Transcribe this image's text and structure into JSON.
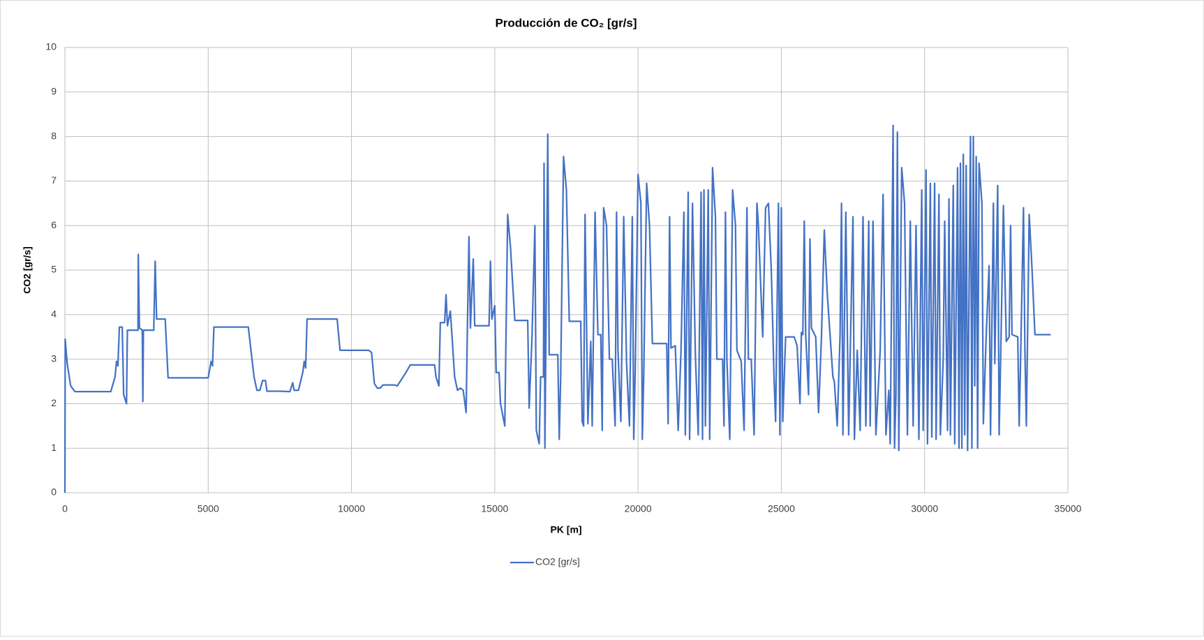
{
  "chart_data": {
    "type": "line",
    "title": "Producción de CO₂ [gr/s]",
    "x_label": "PK [m]",
    "y_label": "CO2  [gr/s]",
    "xlim": [
      0,
      35000
    ],
    "xticks": [
      0,
      5000,
      10000,
      15000,
      20000,
      25000,
      30000,
      35000
    ],
    "ylim": [
      0,
      10
    ],
    "yticks": [
      0,
      1,
      2,
      3,
      4,
      5,
      6,
      7,
      8,
      9,
      10
    ],
    "grid": true,
    "legend": "bottom",
    "x": [
      0,
      10,
      80,
      200,
      350,
      1600,
      1750,
      1800,
      1850,
      1900,
      2000,
      2050,
      2150,
      2180,
      2550,
      2560,
      2600,
      2700,
      2720,
      2740,
      3100,
      3150,
      3200,
      3500,
      3600,
      5000,
      5100,
      5150,
      5200,
      6400,
      6600,
      6700,
      6800,
      6900,
      7000,
      7050,
      7500,
      7850,
      7950,
      8000,
      8150,
      8300,
      8350,
      8400,
      8450,
      9500,
      9600,
      10600,
      10700,
      10800,
      10900,
      11000,
      11100,
      11500,
      11600,
      11900,
      12050,
      12900,
      12950,
      13050,
      13100,
      13250,
      13300,
      13350,
      13450,
      13500,
      13600,
      13700,
      13800,
      13900,
      14000,
      14050,
      14100,
      14150,
      14250,
      14300,
      14800,
      14850,
      14900,
      15000,
      15050,
      15150,
      15200,
      15350,
      15450,
      15550,
      15700,
      16150,
      16200,
      16300,
      16400,
      16450,
      16550,
      16600,
      16700,
      16720,
      16750,
      16850,
      16900,
      17200,
      17250,
      17300,
      17400,
      17500,
      17600,
      18000,
      18050,
      18100,
      18150,
      18250,
      18350,
      18400,
      18500,
      18600,
      18700,
      18750,
      18800,
      18900,
      19000,
      19100,
      19200,
      19250,
      19300,
      19400,
      19500,
      19600,
      19700,
      19800,
      19850,
      19900,
      20000,
      20100,
      20150,
      20200,
      20300,
      20400,
      20500,
      21000,
      21050,
      21100,
      21150,
      21300,
      21400,
      21500,
      21600,
      21650,
      21750,
      21800,
      21900,
      22000,
      22100,
      22200,
      22250,
      22300,
      22350,
      22450,
      22500,
      22600,
      22700,
      22750,
      22950,
      23000,
      23050,
      23100,
      23200,
      23300,
      23400,
      23450,
      23600,
      23700,
      23800,
      23850,
      23950,
      24050,
      24150,
      24200,
      24350,
      24450,
      24550,
      24650,
      24750,
      24800,
      24900,
      24950,
      25000,
      25050,
      25150,
      25450,
      25550,
      25650,
      25700,
      25750,
      25800,
      25850,
      25950,
      26000,
      26050,
      26200,
      26300,
      26400,
      26500,
      26600,
      26800,
      26850,
      26950,
      27050,
      27100,
      27150,
      27250,
      27350,
      27400,
      27500,
      27550,
      27650,
      27750,
      27850,
      27950,
      28050,
      28100,
      28200,
      28300,
      28450,
      28550,
      28650,
      28750,
      28800,
      28900,
      28950,
      29000,
      29050,
      29100,
      29200,
      29300,
      29400,
      29500,
      29600,
      29700,
      29800,
      29900,
      29950,
      30050,
      30100,
      30200,
      30250,
      30350,
      30400,
      30500,
      30550,
      30650,
      30700,
      30800,
      30850,
      30900,
      31000,
      31050,
      31150,
      31200,
      31250,
      31300,
      31350,
      31400,
      31450,
      31500,
      31600,
      31650,
      31700,
      31750,
      31800,
      31850,
      31900,
      32000,
      32050,
      32150,
      32250,
      32300,
      32400,
      32450,
      32550,
      32600,
      32650,
      32750,
      32850,
      32950,
      33000,
      33050,
      33250,
      33300,
      33350,
      33450,
      33500,
      33550,
      33650,
      33750,
      33850,
      34400
    ],
    "series": [
      {
        "name": "CO2 [gr/s]",
        "color": "#4472c4",
        "values": [
          0,
          3.45,
          2.9,
          2.4,
          2.27,
          2.27,
          2.6,
          2.95,
          2.85,
          3.72,
          3.72,
          2.2,
          2.0,
          3.65,
          3.65,
          5.35,
          3.7,
          3.65,
          2.05,
          3.65,
          3.65,
          5.2,
          3.9,
          3.9,
          2.58,
          2.58,
          2.95,
          2.85,
          3.72,
          3.72,
          2.6,
          2.3,
          2.3,
          2.52,
          2.52,
          2.28,
          2.28,
          2.27,
          2.47,
          2.3,
          2.3,
          2.7,
          2.95,
          2.8,
          3.9,
          3.9,
          3.2,
          3.2,
          3.15,
          2.45,
          2.35,
          2.35,
          2.42,
          2.42,
          2.4,
          2.7,
          2.87,
          2.87,
          2.6,
          2.4,
          3.82,
          3.82,
          4.45,
          3.75,
          4.08,
          3.6,
          2.6,
          2.3,
          2.35,
          2.3,
          1.8,
          3.9,
          5.75,
          3.7,
          5.25,
          3.75,
          3.75,
          5.2,
          3.9,
          4.2,
          2.7,
          2.7,
          2.0,
          1.5,
          6.25,
          5.5,
          3.87,
          3.87,
          1.9,
          3.5,
          6.0,
          1.4,
          1.1,
          2.6,
          2.6,
          7.4,
          1.0,
          8.05,
          3.1,
          3.1,
          1.2,
          2.6,
          7.55,
          6.8,
          3.85,
          3.85,
          1.6,
          1.5,
          6.25,
          1.55,
          3.4,
          1.5,
          6.3,
          3.55,
          3.55,
          1.4,
          6.4,
          6.0,
          3.0,
          3.0,
          1.5,
          6.3,
          3.2,
          1.6,
          6.2,
          2.9,
          1.5,
          6.2,
          1.2,
          2.7,
          7.15,
          6.5,
          1.2,
          2.7,
          6.95,
          6.0,
          3.35,
          3.35,
          1.55,
          6.2,
          3.25,
          3.3,
          1.4,
          3.2,
          6.3,
          1.3,
          6.75,
          1.2,
          6.5,
          3.1,
          1.3,
          6.75,
          1.2,
          6.8,
          1.5,
          6.8,
          1.2,
          7.3,
          6.2,
          3.0,
          3.0,
          1.5,
          6.3,
          3.0,
          1.2,
          6.8,
          6.0,
          3.2,
          2.95,
          1.4,
          6.4,
          3.0,
          3.0,
          1.3,
          6.5,
          6.0,
          3.5,
          6.4,
          6.5,
          5.0,
          2.5,
          1.6,
          6.5,
          1.3,
          6.4,
          1.6,
          3.5,
          3.5,
          3.3,
          2.0,
          3.6,
          3.55,
          6.1,
          3.55,
          2.2,
          5.7,
          3.7,
          3.5,
          1.8,
          3.5,
          5.9,
          4.5,
          2.6,
          2.5,
          1.5,
          3.55,
          6.5,
          1.3,
          6.3,
          1.3,
          3.0,
          6.2,
          1.2,
          3.2,
          1.4,
          6.2,
          1.5,
          6.1,
          1.5,
          6.1,
          1.3,
          3.2,
          6.7,
          1.3,
          2.3,
          1.1,
          8.25,
          1.0,
          2.2,
          8.1,
          0.95,
          7.3,
          6.5,
          1.3,
          6.1,
          1.5,
          6.0,
          1.2,
          6.8,
          1.4,
          7.25,
          1.1,
          6.95,
          1.25,
          6.95,
          1.2,
          6.7,
          1.3,
          3.0,
          6.1,
          1.4,
          6.6,
          1.3,
          6.9,
          1.1,
          7.3,
          1.0,
          7.4,
          1.0,
          7.6,
          1.3,
          7.35,
          0.95,
          8.0,
          1.0,
          8.0,
          2.4,
          7.55,
          1.0,
          7.4,
          6.5,
          1.55,
          3.55,
          5.1,
          1.3,
          6.5,
          2.9,
          6.9,
          1.3,
          2.9,
          6.45,
          3.4,
          3.5,
          6.0,
          3.55,
          3.5,
          1.5,
          3.0,
          6.4,
          3.2,
          1.5,
          6.25,
          5.0,
          3.55,
          3.55
        ]
      }
    ]
  }
}
